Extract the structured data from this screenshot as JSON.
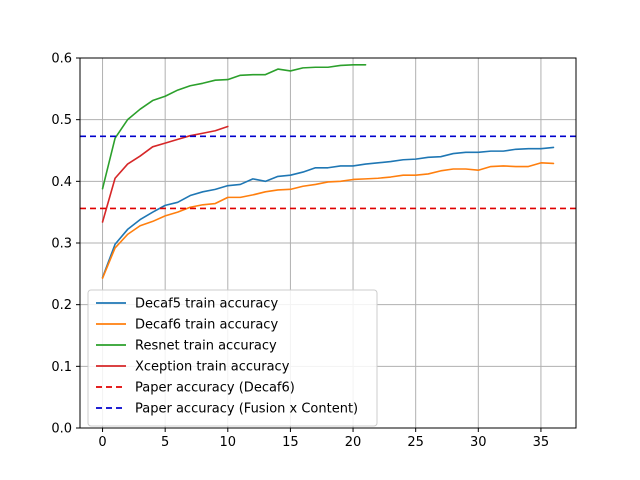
{
  "chart_data": {
    "type": "line",
    "xlim": [
      -1.8,
      37.8
    ],
    "ylim": [
      0,
      0.6
    ],
    "xticks": [
      0,
      5,
      10,
      15,
      20,
      25,
      30,
      35
    ],
    "yticks": [
      0.0,
      0.1,
      0.2,
      0.3,
      0.4,
      0.5,
      0.6
    ],
    "xtick_labels": [
      "0",
      "5",
      "10",
      "15",
      "20",
      "25",
      "30",
      "35"
    ],
    "ytick_labels": [
      "0.0",
      "0.1",
      "0.2",
      "0.3",
      "0.4",
      "0.5",
      "0.6"
    ],
    "grid": true,
    "legend_position": "lower-left",
    "series": [
      {
        "name": "Decaf5 train accuracy",
        "color": "#1f77b4",
        "style": "solid",
        "x": [
          0,
          1,
          2,
          3,
          4,
          5,
          6,
          7,
          8,
          9,
          10,
          11,
          12,
          13,
          14,
          15,
          16,
          17,
          18,
          19,
          20,
          21,
          22,
          23,
          24,
          25,
          26,
          27,
          28,
          29,
          30,
          31,
          32,
          33,
          34,
          35,
          36
        ],
        "y": [
          0.244,
          0.298,
          0.322,
          0.338,
          0.35,
          0.361,
          0.366,
          0.377,
          0.383,
          0.387,
          0.393,
          0.395,
          0.404,
          0.4,
          0.408,
          0.41,
          0.415,
          0.422,
          0.422,
          0.425,
          0.425,
          0.428,
          0.43,
          0.432,
          0.435,
          0.436,
          0.439,
          0.44,
          0.445,
          0.447,
          0.447,
          0.449,
          0.449,
          0.452,
          0.453,
          0.453,
          0.455
        ]
      },
      {
        "name": "Decaf6 train accuracy",
        "color": "#ff7f0e",
        "style": "solid",
        "x": [
          0,
          1,
          2,
          3,
          4,
          5,
          6,
          7,
          8,
          9,
          10,
          11,
          12,
          13,
          14,
          15,
          16,
          17,
          18,
          19,
          20,
          21,
          22,
          23,
          24,
          25,
          26,
          27,
          28,
          29,
          30,
          31,
          32,
          33,
          34,
          35,
          36
        ],
        "y": [
          0.243,
          0.292,
          0.314,
          0.328,
          0.335,
          0.344,
          0.35,
          0.358,
          0.362,
          0.364,
          0.374,
          0.374,
          0.378,
          0.383,
          0.386,
          0.387,
          0.392,
          0.395,
          0.399,
          0.4,
          0.403,
          0.404,
          0.405,
          0.407,
          0.41,
          0.41,
          0.412,
          0.417,
          0.42,
          0.42,
          0.418,
          0.424,
          0.425,
          0.424,
          0.424,
          0.43,
          0.429
        ]
      },
      {
        "name": "Resnet train accuracy",
        "color": "#2ca02c",
        "style": "solid",
        "x": [
          0,
          1,
          2,
          3,
          4,
          5,
          6,
          7,
          8,
          9,
          10,
          11,
          12,
          13,
          14,
          15,
          16,
          17,
          18,
          19,
          20,
          21
        ],
        "y": [
          0.388,
          0.47,
          0.5,
          0.517,
          0.531,
          0.538,
          0.548,
          0.555,
          0.559,
          0.564,
          0.565,
          0.572,
          0.573,
          0.573,
          0.582,
          0.579,
          0.584,
          0.585,
          0.585,
          0.588,
          0.589,
          0.589
        ]
      },
      {
        "name": "Xception train accuracy",
        "color": "#d62728",
        "style": "solid",
        "x": [
          0,
          1,
          2,
          3,
          4,
          5,
          6,
          7,
          8,
          9,
          10
        ],
        "y": [
          0.334,
          0.405,
          0.428,
          0.441,
          0.456,
          0.462,
          0.468,
          0.474,
          0.478,
          0.482,
          0.489
        ]
      },
      {
        "name": "Paper accuracy (Decaf6)",
        "color": "#e00000",
        "style": "dashed",
        "x": [
          -1.8,
          37.8
        ],
        "y": [
          0.356,
          0.356
        ]
      },
      {
        "name": "Paper accuracy (Fusion x Content)",
        "color": "#0000cc",
        "style": "dashed",
        "x": [
          -1.8,
          37.8
        ],
        "y": [
          0.473,
          0.473
        ]
      }
    ]
  }
}
